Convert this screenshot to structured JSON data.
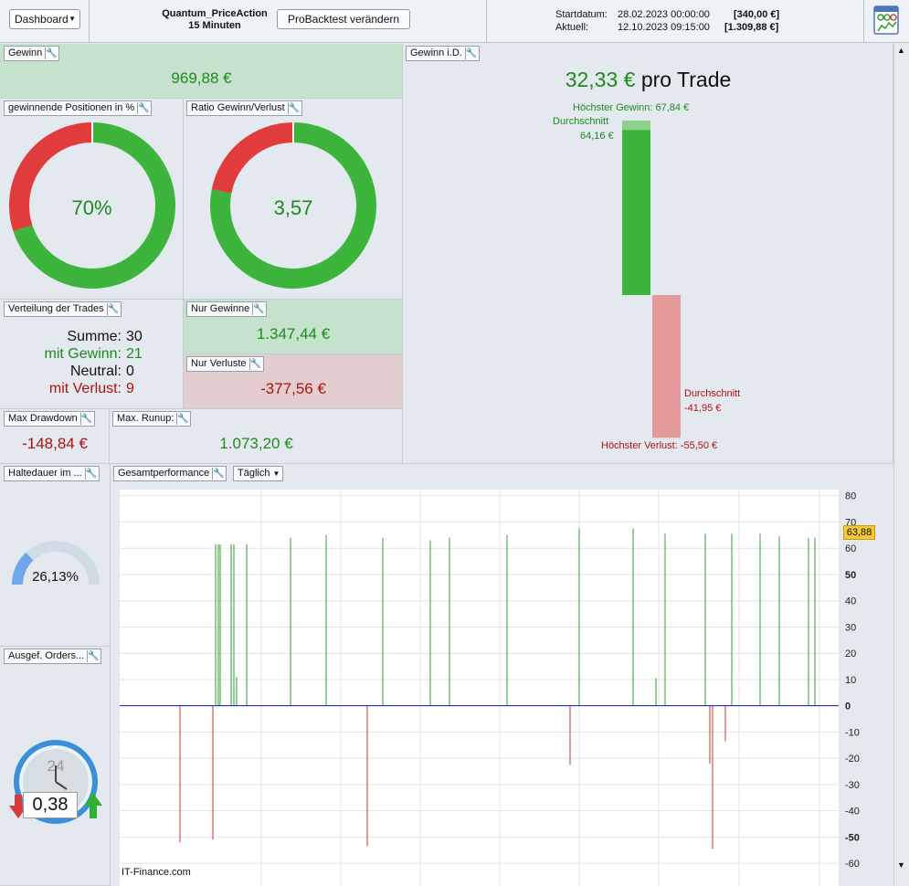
{
  "toolbar": {
    "dashboard_label": "Dashboard",
    "strategy_name": "Quantum_PriceAction",
    "timeframe": "15 Minuten",
    "probacktest_label": "ProBacktest verändern",
    "start_label": "Startdatum:",
    "start_value": "28.02.2023 00:00:00",
    "start_capital": "[340,00 €]",
    "current_label": "Aktuell:",
    "current_value": "12.10.2023 09:15:00",
    "current_capital": "[1.309,88 €]"
  },
  "gewinn": {
    "title": "Gewinn",
    "value": "969,88 €"
  },
  "win_pct": {
    "title": "gewinnende Positionen in %",
    "value": "70%",
    "fraction": 0.7
  },
  "ratio": {
    "title": "Ratio Gewinn/Verlust",
    "value": "3,57",
    "fraction": 0.7812
  },
  "verteilung": {
    "title": "Verteilung der Trades",
    "summe_label": "Summe:",
    "summe": "30",
    "gewinn_label": "mit Gewinn:",
    "gewinn": "21",
    "neutral_label": "Neutral:",
    "neutral": "0",
    "verlust_label": "mit Verlust:",
    "verlust": "9"
  },
  "nur_gewinne": {
    "title": "Nur Gewinne",
    "value": "1.347,44 €"
  },
  "nur_verluste": {
    "title": "Nur Verluste",
    "value": "-377,56 €"
  },
  "max_drawdown": {
    "title": "Max Drawdown",
    "value": "-148,84 €"
  },
  "max_runup": {
    "title": "Max. Runup:",
    "value": "1.073,20 €"
  },
  "gewinn_id": {
    "title": "Gewinn i.D.",
    "per_trade_value": "32,33 €",
    "per_trade_suffix": "pro Trade",
    "highest_gain_label": "Höchster Gewinn: 67,84 €",
    "avg_gain_label": "Durchschnitt",
    "avg_gain_value": "64,16 €",
    "avg_loss_label": "Durchschnitt",
    "avg_loss_value": "-41,95 €",
    "highest_loss_label": "Höchster Verlust: -55,50 €",
    "highest_gain": 67.84,
    "avg_gain": 64.16,
    "avg_loss": -41.95,
    "highest_loss": -55.5
  },
  "haltedauer": {
    "title": "Haltedauer im ...",
    "value": "26,13%",
    "fraction": 0.2613
  },
  "orders": {
    "title": "Ausgef. Orders...",
    "dial_number": "24",
    "value": "0,38"
  },
  "gesamt": {
    "title": "Gesamtperformance",
    "period_label": "Täglich",
    "watermark": "IT-Finance.com",
    "last_value_badge": "63,88"
  },
  "colors": {
    "green": "#3db53d",
    "red": "#e03c3c",
    "bar_green": "#2f9e2f",
    "bar_red": "#c0392b",
    "blue_line": "#1a1aa0"
  },
  "chart_data": {
    "type": "bar",
    "title": "",
    "xlabel": "",
    "ylabel": "",
    "ylim": [
      -69,
      82
    ],
    "yticks": [
      80,
      70,
      60,
      50,
      40,
      30,
      20,
      10,
      0,
      -10,
      -20,
      -30,
      -40,
      -50,
      -60
    ],
    "bold_ticks": [
      50,
      0,
      -50
    ],
    "ytick_labels": [
      "80",
      "70",
      "60",
      "50",
      "40",
      "30",
      "20",
      "10",
      "0",
      "-10",
      "-20",
      "-30",
      "-40",
      "-50",
      "-60"
    ],
    "grid": true,
    "series": [
      {
        "values": [
          -52.0,
          -51.0,
          61.5,
          61.5,
          61.5,
          61.5,
          61.5,
          11.0,
          61.5,
          64.0,
          65.0,
          64.0,
          -53.5,
          63.0,
          64.0,
          65.0,
          -22.5,
          67.5,
          67.5,
          10.5,
          65.5,
          65.5,
          -22.0,
          -54.5,
          65.5,
          -13.5,
          65.5,
          64.5,
          64.0,
          63.88
        ]
      }
    ]
  }
}
